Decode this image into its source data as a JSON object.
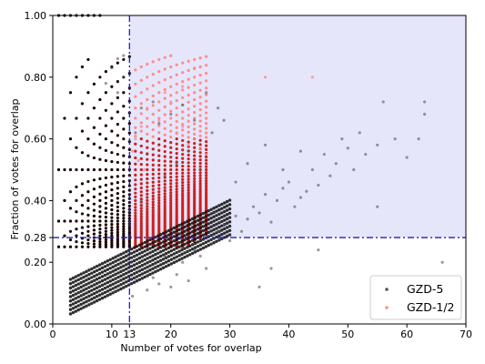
{
  "chart_data": {
    "type": "scatter",
    "xlabel": "Number of votes for overlap",
    "ylabel": "Fraction of votes for overlap",
    "xlim": [
      0,
      70
    ],
    "ylim": [
      0,
      1
    ],
    "x_ticks": [
      0,
      10,
      13,
      20,
      30,
      40,
      50,
      60,
      70
    ],
    "x_tick_labels": [
      "0",
      "10",
      "13",
      "20",
      "30",
      "40",
      "50",
      "60",
      "70"
    ],
    "y_ticks": [
      0.0,
      0.2,
      0.28,
      0.4,
      0.6,
      0.8,
      1.0
    ],
    "y_tick_labels": [
      "0.00",
      "0.20",
      "0.28",
      "0.40",
      "0.60",
      "0.80",
      "1.00"
    ],
    "grid": false,
    "legend_position": "lower-right",
    "threshold_lines": {
      "x": 13,
      "y": 0.28,
      "color": "#1f1fbf",
      "style": "dash-dot"
    },
    "shaded_region": {
      "x_from": 13,
      "y_from": 0.28,
      "color": "#e6e6fa"
    },
    "series": [
      {
        "name": "GZD-5",
        "color": "#555555",
        "points": [
          [
            14,
            0.15
          ],
          [
            16,
            0.11
          ],
          [
            17,
            0.15
          ],
          [
            18,
            0.13
          ],
          [
            19,
            0.22
          ],
          [
            20,
            0.12
          ],
          [
            21,
            0.16
          ],
          [
            22,
            0.2
          ],
          [
            23,
            0.14
          ],
          [
            24,
            0.24
          ],
          [
            25,
            0.22
          ],
          [
            26,
            0.18
          ],
          [
            27,
            0.26
          ],
          [
            28,
            0.3
          ],
          [
            29,
            0.32
          ],
          [
            30,
            0.27
          ],
          [
            31,
            0.35
          ],
          [
            32,
            0.3
          ],
          [
            33,
            0.34
          ],
          [
            34,
            0.38
          ],
          [
            35,
            0.36
          ],
          [
            36,
            0.42
          ],
          [
            37,
            0.33
          ],
          [
            38,
            0.4
          ],
          [
            39,
            0.44
          ],
          [
            40,
            0.46
          ],
          [
            41,
            0.38
          ],
          [
            42,
            0.41
          ],
          [
            43,
            0.43
          ],
          [
            44,
            0.5
          ],
          [
            45,
            0.45
          ],
          [
            46,
            0.55
          ],
          [
            47,
            0.48
          ],
          [
            48,
            0.52
          ],
          [
            49,
            0.6
          ],
          [
            50,
            0.57
          ],
          [
            51,
            0.5
          ],
          [
            52,
            0.62
          ],
          [
            53,
            0.55
          ],
          [
            55,
            0.58
          ],
          [
            56,
            0.72
          ],
          [
            58,
            0.6
          ],
          [
            60,
            0.54
          ],
          [
            62,
            0.6
          ],
          [
            63,
            0.72
          ],
          [
            63,
            0.68
          ],
          [
            66,
            0.2
          ],
          [
            14,
            0.62
          ],
          [
            15,
            0.7
          ],
          [
            17,
            0.72
          ],
          [
            18,
            0.65
          ],
          [
            20,
            0.68
          ],
          [
            22,
            0.71
          ],
          [
            24,
            0.66
          ],
          [
            26,
            0.75
          ],
          [
            28,
            0.7
          ],
          [
            27,
            0.62
          ],
          [
            29,
            0.66
          ],
          [
            35,
            0.12
          ],
          [
            45,
            0.24
          ],
          [
            55,
            0.38
          ],
          [
            37,
            0.18
          ],
          [
            42,
            0.56
          ],
          [
            31,
            0.46
          ],
          [
            25,
            0.5
          ],
          [
            23,
            0.56
          ],
          [
            21,
            0.52
          ],
          [
            19,
            0.48
          ],
          [
            16,
            0.55
          ],
          [
            15,
            0.4
          ],
          [
            13.5,
            0.09
          ],
          [
            12,
            0.87
          ],
          [
            11,
            0.86
          ],
          [
            10,
            0.83
          ],
          [
            9,
            0.78
          ],
          [
            11,
            0.75
          ],
          [
            12,
            0.8
          ],
          [
            33,
            0.52
          ],
          [
            36,
            0.58
          ],
          [
            39,
            0.5
          ]
        ]
      },
      {
        "name": "GZD-1/2",
        "color": "#ff8c8c",
        "points": [
          [
            24,
            0.83
          ],
          [
            36,
            0.8
          ],
          [
            44,
            0.8
          ],
          [
            22,
            0.77
          ],
          [
            19,
            0.75
          ],
          [
            20,
            0.72
          ],
          [
            16,
            0.7
          ],
          [
            17,
            0.68
          ],
          [
            18,
            0.66
          ],
          [
            15,
            0.64
          ],
          [
            14,
            0.6
          ],
          [
            21,
            0.62
          ],
          [
            22,
            0.64
          ],
          [
            23,
            0.58
          ],
          [
            24,
            0.6
          ],
          [
            25,
            0.57
          ],
          [
            26,
            0.55
          ],
          [
            13.5,
            0.56
          ],
          [
            14.5,
            0.53
          ],
          [
            15.5,
            0.5
          ]
        ]
      }
    ]
  }
}
